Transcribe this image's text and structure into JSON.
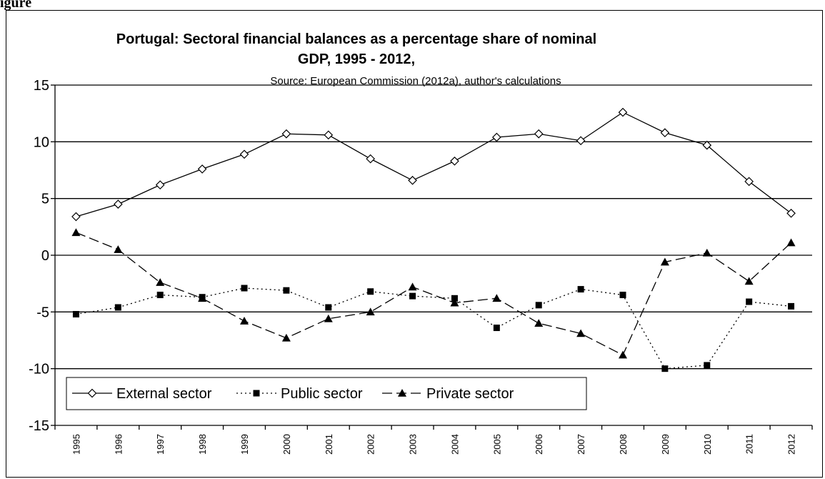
{
  "caption": "igure",
  "chart_data": {
    "type": "line",
    "title_line1": "Portugal: Sectoral financial balances as a percentage share of nominal",
    "title_line2": "GDP, 1995 - 2012,",
    "subtitle": "Source: European Commission (2012a), author's calculations",
    "xlabel": "",
    "ylabel": "",
    "ylim": [
      -15,
      15
    ],
    "yticks": [
      15,
      10,
      5,
      0,
      -5,
      -10,
      -15
    ],
    "grid": true,
    "legend_position": "bottom-left",
    "categories": [
      "1995",
      "1996",
      "1997",
      "1998",
      "1999",
      "2000",
      "2001",
      "2002",
      "2003",
      "2004",
      "2005",
      "2006",
      "2007",
      "2008",
      "2009",
      "2010",
      "2011",
      "2012"
    ],
    "series": [
      {
        "name": "External sector",
        "marker": "diamond-open",
        "line": "solid",
        "values": [
          3.4,
          4.5,
          6.2,
          7.6,
          8.9,
          10.7,
          10.6,
          8.5,
          6.6,
          8.3,
          10.4,
          10.7,
          10.1,
          12.6,
          10.8,
          9.7,
          6.5,
          3.7
        ]
      },
      {
        "name": "Public sector",
        "marker": "square-filled",
        "line": "dotted",
        "values": [
          -5.2,
          -4.6,
          -3.5,
          -3.7,
          -2.9,
          -3.1,
          -4.6,
          -3.2,
          -3.6,
          -3.8,
          -6.4,
          -4.4,
          -3.0,
          -3.5,
          -10.0,
          -9.7,
          -4.1,
          -4.5
        ]
      },
      {
        "name": "Private sector",
        "marker": "triangle-filled",
        "line": "dashed",
        "values": [
          2.0,
          0.5,
          -2.4,
          -3.8,
          -5.8,
          -7.3,
          -5.6,
          -5.0,
          -2.8,
          -4.2,
          -3.8,
          -6.0,
          -6.9,
          -8.8,
          -0.6,
          0.2,
          -2.3,
          1.1
        ]
      }
    ]
  }
}
